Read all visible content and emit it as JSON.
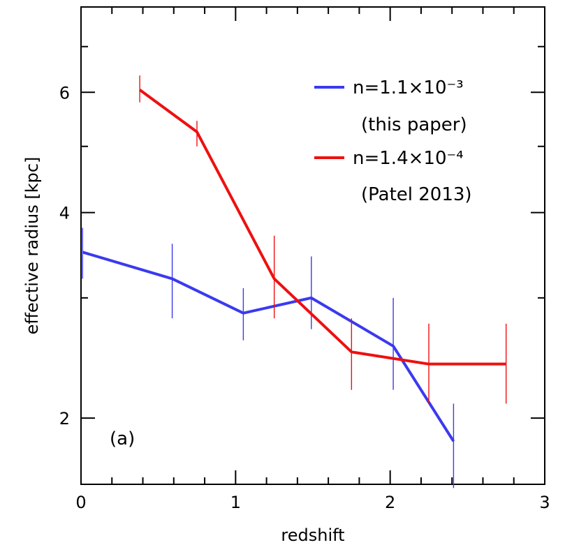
{
  "chart_data": {
    "type": "line",
    "title": "",
    "xlabel": "redshift",
    "ylabel": "effective radius [kpc]",
    "xlim": [
      0,
      3
    ],
    "ylim": [
      1.6,
      8.0
    ],
    "yscale": "log",
    "x_ticks": [
      0,
      1,
      2,
      3
    ],
    "x_minor_ticks": [
      0.2,
      0.4,
      0.6,
      0.8,
      1.2,
      1.4,
      1.6,
      1.8,
      2.2,
      2.4,
      2.6,
      2.8
    ],
    "y_ticks": [
      2,
      4,
      6
    ],
    "y_minor_ticks": [
      3,
      5,
      7
    ],
    "panel_label": "(a)",
    "series": [
      {
        "name": "n=1.1×10⁻³",
        "legend_line1": "n=1.1×10⁻³",
        "legend_line2": "(this paper)",
        "color": "#3a3af0",
        "x": [
          0.01,
          0.59,
          1.05,
          1.49,
          2.02,
          2.41
        ],
        "y": [
          3.5,
          3.2,
          2.85,
          3.0,
          2.55,
          1.85
        ],
        "err_low": [
          3.2,
          2.8,
          2.6,
          2.7,
          2.2,
          1.58
        ],
        "err_high": [
          3.8,
          3.6,
          3.1,
          3.45,
          3.0,
          2.1
        ]
      },
      {
        "name": "n=1.4×10⁻⁴",
        "legend_line1": "n=1.4×10⁻⁴",
        "legend_line2": "(Patel 2013)",
        "color": "#ee1010",
        "x": [
          0.38,
          0.75,
          1.25,
          1.75,
          2.25,
          2.75
        ],
        "y": [
          6.05,
          5.25,
          3.2,
          2.5,
          2.4,
          2.4
        ],
        "err_low": [
          5.8,
          5.0,
          2.8,
          2.2,
          2.1,
          2.1
        ],
        "err_high": [
          6.35,
          5.45,
          3.7,
          2.8,
          2.75,
          2.75
        ]
      }
    ]
  }
}
